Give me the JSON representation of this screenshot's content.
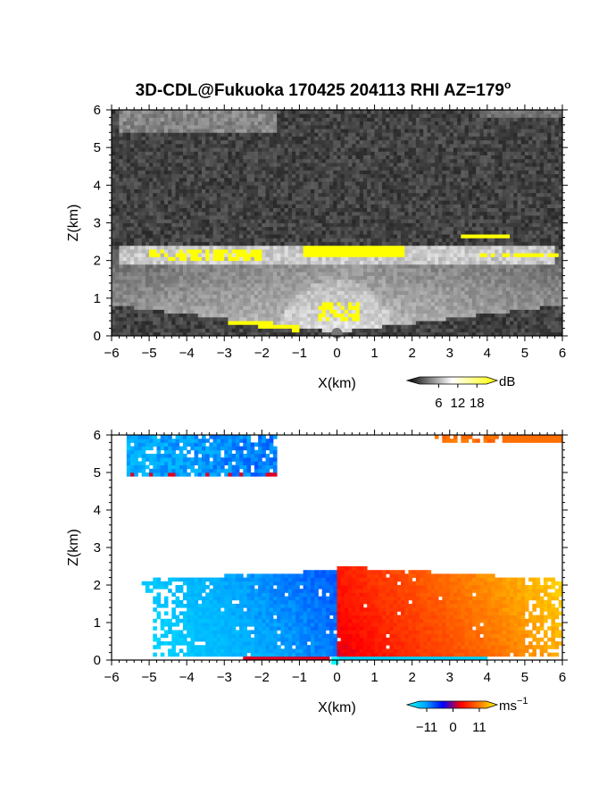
{
  "title": "3D-CDL@Fukuoka 170425 204113 RHI AZ=179",
  "title_superscript": "o",
  "chart_data": [
    {
      "type": "heatmap",
      "panel": "reflectivity",
      "xlabel": "X(km)",
      "ylabel": "Z(km)",
      "xlim": [
        -6,
        6
      ],
      "ylim": [
        0,
        6
      ],
      "xticks": [
        "-6",
        "-5",
        "-4",
        "-3",
        "-2",
        "-1",
        "0",
        "1",
        "2",
        "3",
        "4",
        "5",
        "6"
      ],
      "yticks": [
        "0",
        "1",
        "2",
        "3",
        "4",
        "5",
        "6"
      ],
      "colorbar": {
        "unit": "dB",
        "ticks": [
          "6",
          "12",
          "18"
        ],
        "tick_values": [
          6,
          12,
          18
        ],
        "range": [
          0,
          21
        ],
        "colors": [
          "#000000",
          "#ffffff",
          "#ffff00"
        ]
      },
      "features": [
        {
          "kind": "background_noise",
          "color": "#3a3a3a"
        },
        {
          "kind": "upper_layer",
          "x": [
            -5.8,
            -1.6
          ],
          "z": [
            5.4,
            6.0
          ],
          "value_db": 10
        },
        {
          "kind": "cloud_layer",
          "x": [
            -6,
            6
          ],
          "z": [
            1.7,
            2.5
          ],
          "value_db": 18
        },
        {
          "kind": "strong_echo",
          "x": [
            -0.9,
            1.8
          ],
          "z": [
            2.1,
            2.45
          ],
          "value_db": 20
        },
        {
          "kind": "strong_echo",
          "x": [
            3.3,
            4.6
          ],
          "z": [
            2.6,
            2.75
          ],
          "value_db": 20
        },
        {
          "kind": "strong_echo",
          "x": [
            -0.5,
            0.6
          ],
          "z": [
            0.4,
            0.9
          ],
          "value_db": 20
        },
        {
          "kind": "strong_echo",
          "x": [
            -5,
            -2
          ],
          "z": [
            2.0,
            2.3
          ],
          "value_db": 20
        }
      ]
    },
    {
      "type": "heatmap",
      "panel": "doppler_velocity",
      "xlabel": "X(km)",
      "ylabel": "Z(km)",
      "xlim": [
        -6,
        6
      ],
      "ylim": [
        0,
        6
      ],
      "xticks": [
        "-6",
        "-5",
        "-4",
        "-3",
        "-2",
        "-1",
        "0",
        "1",
        "2",
        "3",
        "4",
        "5",
        "6"
      ],
      "yticks": [
        "0",
        "1",
        "2",
        "3",
        "4",
        "5",
        "6"
      ],
      "colorbar": {
        "unit": "ms",
        "unit_superscript": "−1",
        "ticks": [
          "−11",
          "0",
          "11"
        ],
        "tick_values": [
          -11,
          0,
          11
        ],
        "range": [
          -14,
          14
        ],
        "colors": [
          "#00ffff",
          "#00aaff",
          "#0000ff",
          "#ff0000",
          "#ff7700",
          "#ffff00"
        ]
      },
      "features": [
        {
          "kind": "negative_layer",
          "x": [
            -5.6,
            -1.6
          ],
          "z": [
            4.9,
            6.0
          ],
          "value_ms": -8
        },
        {
          "kind": "positive_layer",
          "x": [
            2.6,
            6.0
          ],
          "z": [
            5.8,
            6.0
          ],
          "value_ms": 7
        },
        {
          "kind": "approaching_region",
          "x": [
            -6,
            0
          ],
          "z": [
            0.05,
            2.6
          ],
          "value_ms": -9
        },
        {
          "kind": "receding_region",
          "x": [
            0,
            6
          ],
          "z": [
            0.05,
            2.8
          ],
          "value_ms": 9
        }
      ]
    }
  ],
  "colors": {
    "axis": "#000000",
    "no_data": "#ffffff"
  }
}
